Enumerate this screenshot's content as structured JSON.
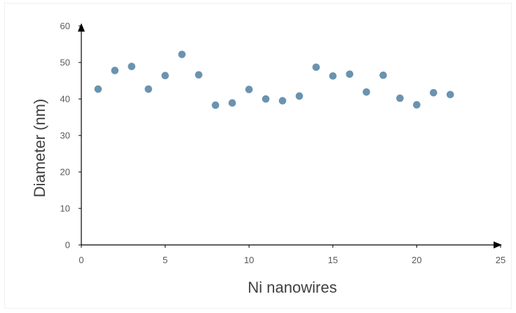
{
  "chart_data": {
    "type": "scatter",
    "title": "",
    "xlabel": "Ni nanowires",
    "ylabel": "Diameter (nm)",
    "xlim": [
      0,
      25
    ],
    "ylim": [
      0,
      60
    ],
    "xticks": [
      0,
      5,
      10,
      15,
      20,
      25
    ],
    "yticks": [
      0,
      10,
      20,
      30,
      40,
      50,
      60
    ],
    "grid": false,
    "marker_color": "#6a93b0",
    "axis_color": "#000000",
    "series": [
      {
        "x": [
          1,
          2,
          3,
          4,
          5,
          6,
          7,
          8,
          9,
          10,
          11,
          12,
          13,
          14,
          15,
          16,
          17,
          18,
          19,
          20,
          21,
          22
        ],
        "y": [
          42.7,
          47.8,
          48.9,
          42.7,
          46.4,
          52.2,
          46.6,
          38.3,
          38.9,
          42.6,
          40.0,
          39.5,
          40.8,
          48.7,
          46.3,
          46.8,
          41.9,
          46.5,
          40.2,
          38.4,
          41.7,
          41.2
        ]
      }
    ]
  }
}
